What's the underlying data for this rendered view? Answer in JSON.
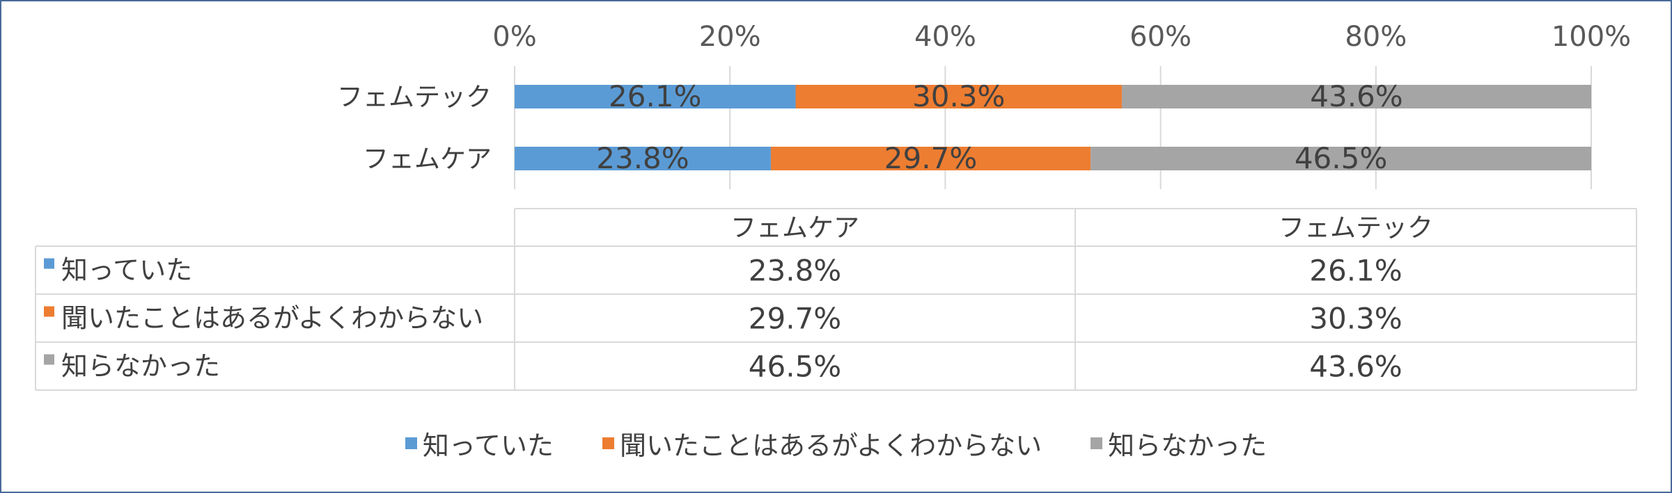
{
  "chart_data": {
    "type": "bar",
    "orientation": "horizontal",
    "stacked": "percent",
    "categories": [
      "フェムテック",
      "フェムケア"
    ],
    "series": [
      {
        "name": "知っていた",
        "values": [
          26.1,
          23.8
        ],
        "color": "#5b9bd5"
      },
      {
        "name": "聞いたことはあるがよくわからない",
        "values": [
          30.3,
          29.7
        ],
        "color": "#ed7d31"
      },
      {
        "name": "知らなかった",
        "values": [
          43.6,
          46.5
        ],
        "color": "#a5a5a5"
      }
    ],
    "x_ticks": [
      "0%",
      "20%",
      "40%",
      "60%",
      "80%",
      "100%"
    ],
    "xlim": [
      0,
      100
    ],
    "grid": true,
    "legend_position": "bottom",
    "data_table": {
      "columns": [
        "フェムケア",
        "フェムテック"
      ],
      "rows": [
        {
          "label": "知っていた",
          "values": [
            "23.8%",
            "26.1%"
          ]
        },
        {
          "label": "聞いたことはあるがよくわからない",
          "values": [
            "29.7%",
            "30.3%"
          ]
        },
        {
          "label": "知らなかった",
          "values": [
            "46.5%",
            "43.6%"
          ]
        }
      ]
    }
  }
}
